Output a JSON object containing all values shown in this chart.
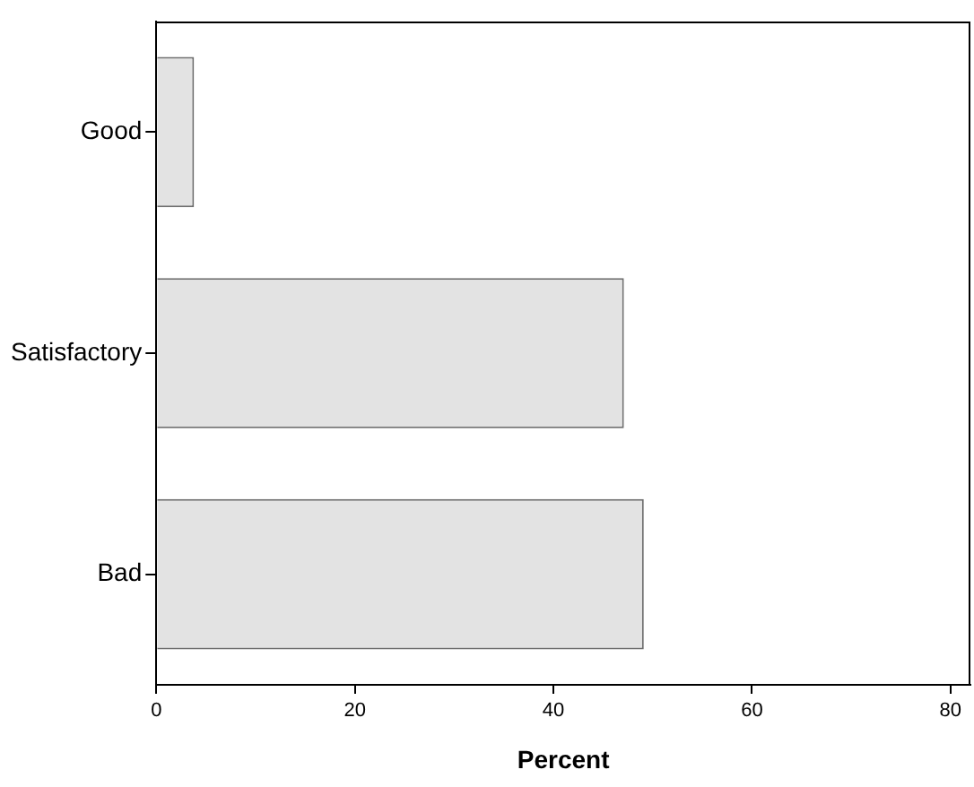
{
  "chart_data": {
    "type": "bar",
    "orientation": "horizontal",
    "categories": [
      "Good",
      "Satisfactory",
      "Bad"
    ],
    "values": [
      3.8,
      47.1,
      49.1
    ],
    "color": "#e3e3e3",
    "xlim": [
      0,
      82
    ],
    "xticks": [
      0,
      20,
      40,
      60,
      80
    ],
    "xlabel": "Percent",
    "grid": false,
    "legend": false
  }
}
